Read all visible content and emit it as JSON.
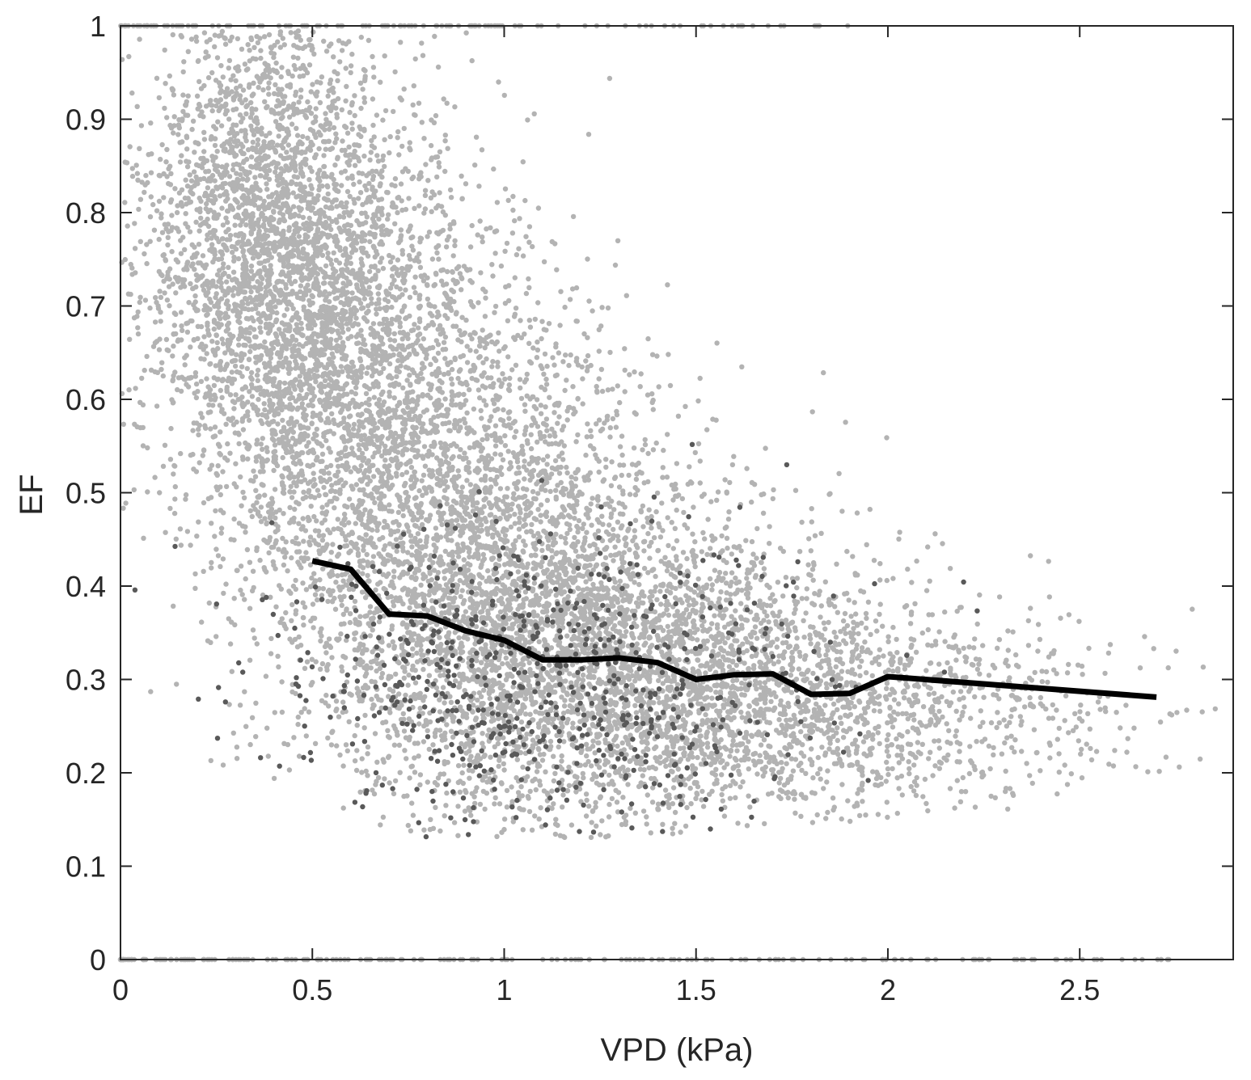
{
  "chart_data": {
    "type": "scatter",
    "title": "",
    "xlabel": "VPD (kPa)",
    "ylabel": "EF",
    "xlim": [
      0,
      2.9
    ],
    "ylim": [
      0,
      1
    ],
    "xticks": [
      0,
      0.5,
      1,
      1.5,
      2,
      2.5
    ],
    "xtick_labels": [
      "0",
      "0.5",
      "1",
      "1.5",
      "2",
      "2.5"
    ],
    "yticks": [
      0,
      0.1,
      0.2,
      0.3,
      0.4,
      0.5,
      0.6,
      0.7,
      0.8,
      0.9,
      1
    ],
    "ytick_labels": [
      "0",
      "0.1",
      "0.2",
      "0.3",
      "0.4",
      "0.5",
      "0.6",
      "0.7",
      "0.8",
      "0.9",
      "1"
    ],
    "grid": false,
    "box": true,
    "colors": {
      "scatter_light": "#b3b3b3",
      "scatter_dark": "#595959",
      "line": "#000000",
      "axis": "#262626"
    },
    "scatter_cloud": [
      {
        "vpd": 0.38,
        "ef": 0.78,
        "sd_vpd": 0.17,
        "sd_ef": 0.13,
        "n": 2600,
        "shade": "light"
      },
      {
        "vpd": 0.6,
        "ef": 0.62,
        "sd_vpd": 0.2,
        "sd_ef": 0.14,
        "n": 2200,
        "shade": "light"
      },
      {
        "vpd": 0.9,
        "ef": 0.45,
        "sd_vpd": 0.25,
        "sd_ef": 0.14,
        "n": 2400,
        "shade": "light"
      },
      {
        "vpd": 1.2,
        "ef": 0.33,
        "sd_vpd": 0.3,
        "sd_ef": 0.1,
        "n": 2400,
        "shade": "light"
      },
      {
        "vpd": 1.6,
        "ef": 0.28,
        "sd_vpd": 0.3,
        "sd_ef": 0.07,
        "n": 1500,
        "shade": "light"
      },
      {
        "vpd": 2.1,
        "ef": 0.27,
        "sd_vpd": 0.3,
        "sd_ef": 0.05,
        "n": 600,
        "shade": "light"
      },
      {
        "vpd": 1.1,
        "ef": 0.3,
        "sd_vpd": 0.35,
        "sd_ef": 0.08,
        "n": 700,
        "shade": "dark"
      }
    ],
    "boundary_points": [
      {
        "ef": 1,
        "vpd_min": 0.0,
        "vpd_max": 1.9,
        "n": 140
      },
      {
        "ef": 0,
        "vpd_min": 0.0,
        "vpd_max": 2.75,
        "n": 220
      }
    ],
    "series": [
      {
        "type": "line",
        "x": [
          0.5,
          0.6,
          0.7,
          0.8,
          0.9,
          1.0,
          1.1,
          1.2,
          1.3,
          1.4,
          1.5,
          1.6,
          1.7,
          1.8,
          1.9,
          2.0,
          2.7
        ],
        "y": [
          0.427,
          0.418,
          0.37,
          0.368,
          0.352,
          0.342,
          0.321,
          0.321,
          0.323,
          0.318,
          0.3,
          0.305,
          0.306,
          0.284,
          0.285,
          0.303,
          0.281
        ]
      }
    ]
  }
}
